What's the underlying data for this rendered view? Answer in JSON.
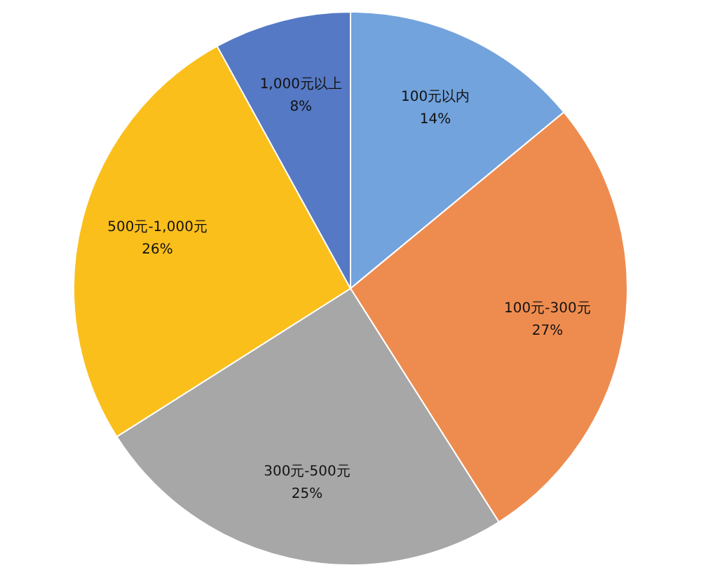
{
  "chart_data": {
    "type": "pie",
    "categories": [
      "100元以内",
      "100元-300元",
      "300元-500元",
      "500元-1,000元",
      "1,000元以上"
    ],
    "values": [
      14,
      27,
      25,
      26,
      8
    ],
    "value_labels": [
      "14%",
      "27%",
      "25%",
      "26%",
      "8%"
    ],
    "colors": [
      "#72a3dc",
      "#ee8c4f",
      "#a7a7a7",
      "#fbbf1c",
      "#5579c4"
    ],
    "legend": false
  }
}
